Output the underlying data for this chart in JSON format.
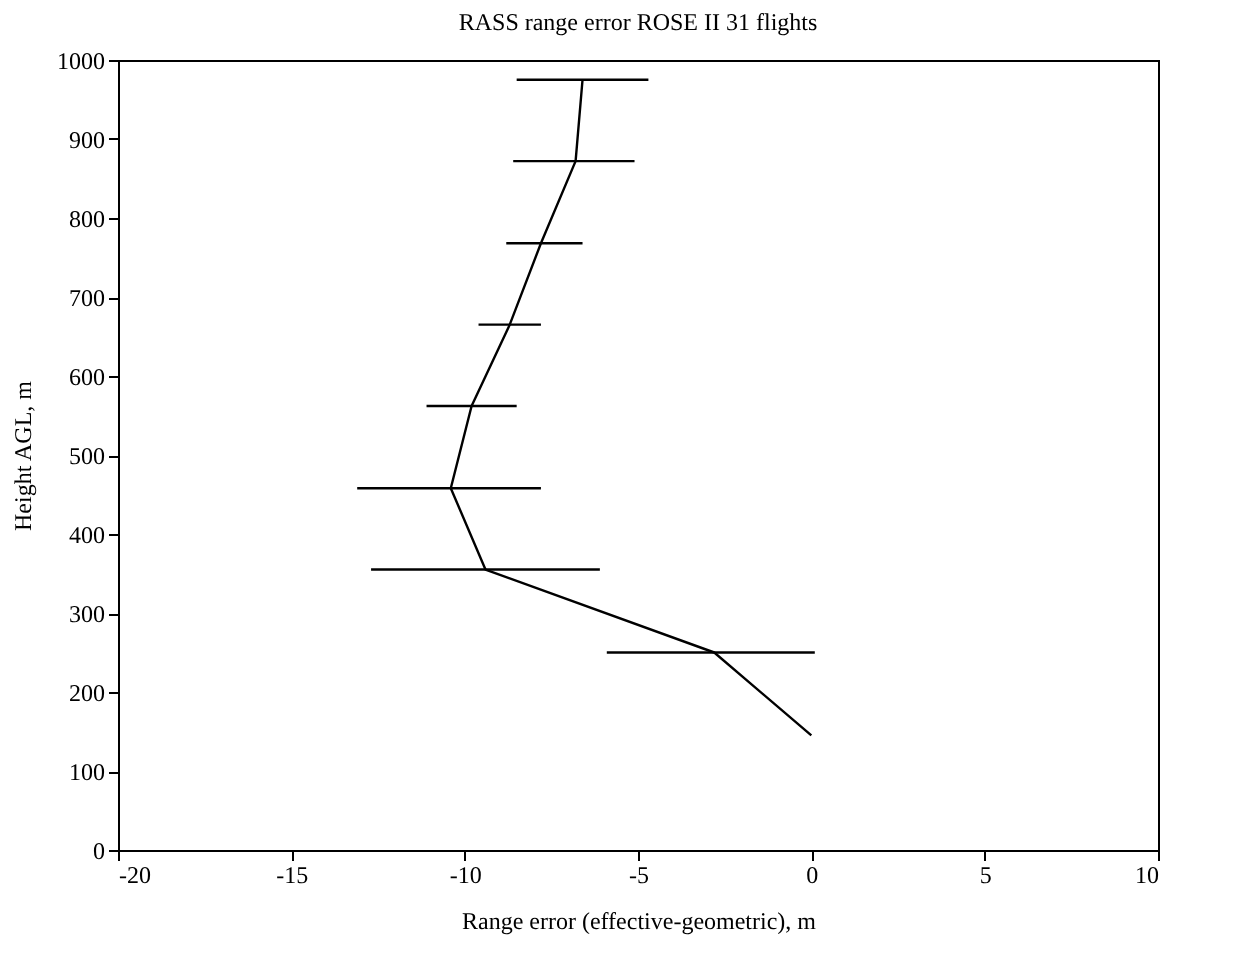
{
  "chart_data": {
    "type": "line",
    "title": "RASS range error ROSE II  31 flights",
    "xlabel": "Range error (effective-geometric), m",
    "ylabel": "Height AGL, m",
    "series": [
      {
        "color": "#000000",
        "x": [
          0,
          -2.8,
          -9.4,
          -10.4,
          -9.8,
          -8.7,
          -7.8,
          -6.8,
          -6.6
        ],
        "values": [
          145,
          250,
          355,
          458,
          562,
          665,
          768,
          872,
          975
        ],
        "xerrors": [
          null,
          [
            -5.9,
            0.1
          ],
          [
            -12.7,
            -6.1
          ],
          [
            -13.1,
            -7.8
          ],
          [
            -11.1,
            -8.5
          ],
          [
            -9.6,
            -7.8
          ],
          [
            -8.8,
            -6.6
          ],
          [
            -8.6,
            -5.1
          ],
          [
            -8.5,
            -4.7
          ]
        ]
      }
    ],
    "xlim": [
      -20,
      10
    ],
    "xticks": [
      -20,
      -15,
      -10,
      -5,
      0,
      5,
      10
    ],
    "ylim": [
      0,
      1000
    ],
    "yticks": [
      0,
      100,
      200,
      300,
      400,
      500,
      600,
      700,
      800,
      900,
      1000
    ],
    "grid": false,
    "marker": "none",
    "line_style": "solid"
  }
}
